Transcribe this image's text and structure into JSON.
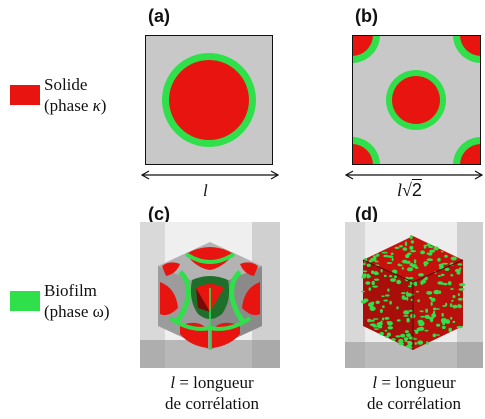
{
  "panels": {
    "a": {
      "label": "(a)"
    },
    "b": {
      "label": "(b)"
    },
    "c": {
      "label": "(c)"
    },
    "d": {
      "label": "(d)"
    }
  },
  "legend": {
    "solid": {
      "line1": "Solide",
      "line2_prefix": "(phase ",
      "line2_symbol": "κ",
      "line2_suffix": ")",
      "color": "#e8140f"
    },
    "biofilm": {
      "line1": "Biofilm",
      "line2_prefix": "(phase ",
      "line2_symbol": "ω",
      "line2_suffix": ")",
      "color": "#2fe04a"
    }
  },
  "dimensions": {
    "a": {
      "symbol": "l"
    },
    "b": {
      "symbol": "l",
      "radical": "√",
      "radicand": "2"
    }
  },
  "captions": {
    "c": {
      "symbol": "l",
      "line1_rest": " = longueur",
      "line2": "de corrélation"
    },
    "d": {
      "symbol": "l",
      "line1_rest": " = longueur",
      "line2": "de corrélation"
    }
  },
  "colors": {
    "solid_red": "#e8140f",
    "biofilm_green": "#2fe04a",
    "pore_gray": "#c8c8c8",
    "background": "#ffffff"
  }
}
